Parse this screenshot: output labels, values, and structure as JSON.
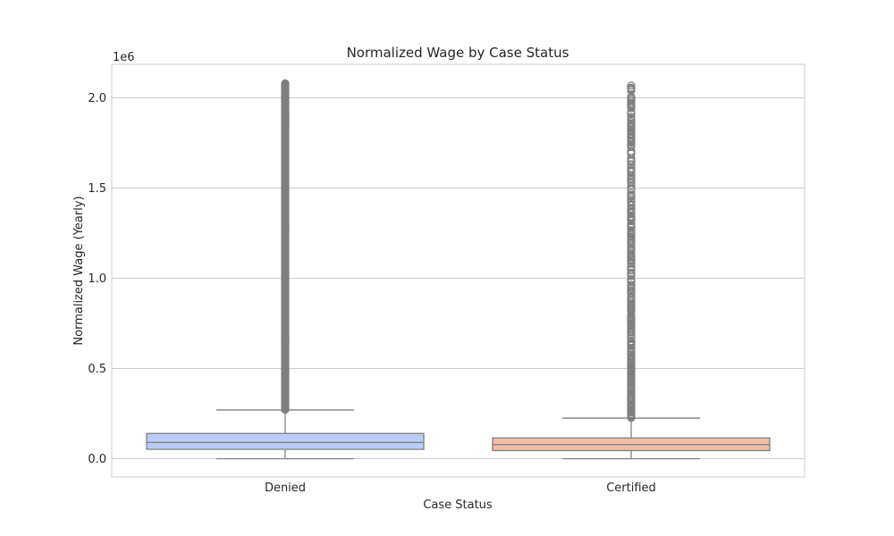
{
  "chart_data": {
    "type": "box",
    "title": "Normalized Wage by Case Status",
    "xlabel": "Case Status",
    "ylabel": "Normalized Wage (Yearly)",
    "y_offset_label": "1e6",
    "ylim": [
      -0.1,
      2.18
    ],
    "y_ticks": [
      0.0,
      0.5,
      1.0,
      1.5,
      2.0
    ],
    "y_tick_labels": [
      "0.0",
      "0.5",
      "1.0",
      "1.5",
      "2.0"
    ],
    "grid": true,
    "categories": [
      "Denied",
      "Certified"
    ],
    "boxes": [
      {
        "category": "Denied",
        "color": "#b9cdf7",
        "whislo": 0.0,
        "q1": 0.052,
        "median": 0.09,
        "q3": 0.14,
        "whishi": 0.27,
        "outliers_range": [
          0.27,
          2.08
        ],
        "outlier_density": "dense"
      },
      {
        "category": "Certified",
        "color": "#f2bca6",
        "whislo": 0.0,
        "q1": 0.045,
        "median": 0.078,
        "q3": 0.115,
        "whishi": 0.225,
        "outliers_range": [
          0.225,
          2.08
        ],
        "outlier_density": "sparse"
      }
    ],
    "box_edge_color": "#7f7f7f",
    "outlier_color": "#7f7f7f"
  }
}
